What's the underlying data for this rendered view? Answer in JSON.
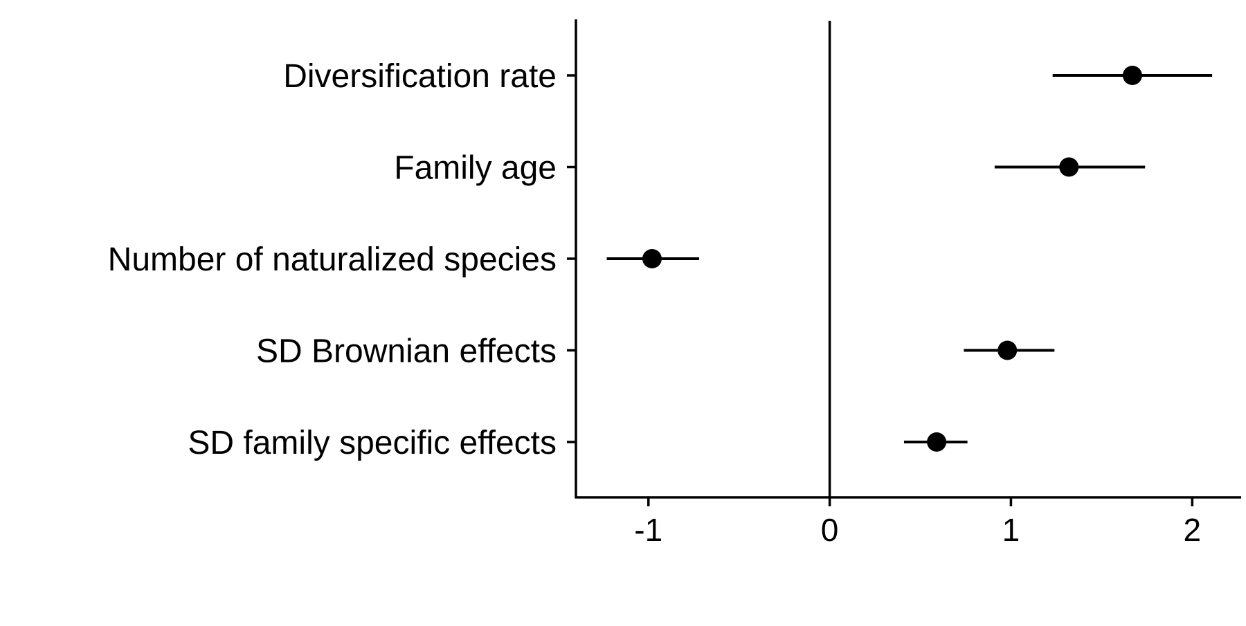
{
  "chart_data": {
    "type": "scatter",
    "title": "",
    "xlabel": "",
    "ylabel": "",
    "xlim": [
      -1.4,
      2.27
    ],
    "grid": false,
    "zero_line": true,
    "xticks": [
      -1,
      0,
      1,
      2
    ],
    "xtick_labels": [
      "-1",
      "0",
      "1",
      "2"
    ],
    "categories": [
      "Diversification rate",
      "Family age",
      "Number of naturalized species",
      "SD Brownian effects",
      "SD family specific effects"
    ],
    "points": [
      {
        "label": "Diversification rate",
        "estimate": 1.67,
        "lower": 1.23,
        "upper": 2.11
      },
      {
        "label": "Family age",
        "estimate": 1.32,
        "lower": 0.91,
        "upper": 1.74
      },
      {
        "label": "Number of naturalized species",
        "estimate": -0.98,
        "lower": -1.23,
        "upper": -0.72
      },
      {
        "label": "SD Brownian effects",
        "estimate": 0.98,
        "lower": 0.74,
        "upper": 1.24
      },
      {
        "label": "SD family specific effects",
        "estimate": 0.59,
        "lower": 0.41,
        "upper": 0.76
      }
    ],
    "colors": {
      "point": "#000000",
      "line": "#000000",
      "axis": "#000000"
    }
  }
}
